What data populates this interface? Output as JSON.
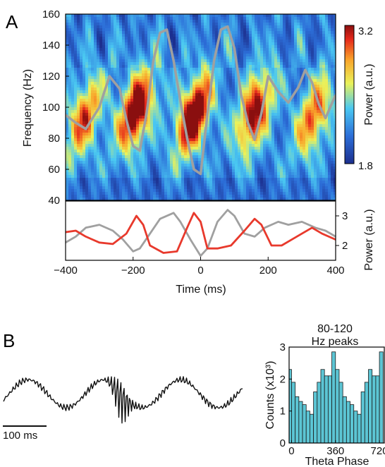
{
  "panels": {
    "a": "A",
    "b": "B"
  },
  "chart_data": [
    {
      "id": "spectrogram",
      "type": "heatmap",
      "xlabel": "",
      "ylabel": "Frequency (Hz)",
      "xlim": [
        -400,
        400
      ],
      "ylim": [
        40,
        160
      ],
      "yticks": [
        "40",
        "60",
        "80",
        "100",
        "120",
        "140",
        "160"
      ],
      "blobs": [
        {
          "t": -345,
          "f": 93,
          "amp": 0.55
        },
        {
          "t": -190,
          "f": 98,
          "amp": 0.95
        },
        {
          "t": -20,
          "f": 95,
          "amp": 1.0
        },
        {
          "t": 160,
          "f": 97,
          "amp": 0.8
        },
        {
          "t": 335,
          "f": 94,
          "amp": 0.55
        }
      ],
      "overlay_trace": {
        "color": "#a0a0a0",
        "t": [
          -400,
          -370,
          -340,
          -300,
          -270,
          -240,
          -220,
          -200,
          -180,
          -160,
          -140,
          -120,
          -100,
          -80,
          -60,
          -40,
          -20,
          0,
          20,
          40,
          60,
          80,
          100,
          120,
          140,
          160,
          180,
          200,
          230,
          260,
          290,
          310,
          330,
          350,
          370,
          400
        ],
        "f": [
          95,
          90,
          86,
          100,
          120,
          112,
          92,
          75,
          72,
          96,
          130,
          148,
          150,
          130,
          104,
          80,
          60,
          57,
          95,
          130,
          150,
          152,
          138,
          108,
          90,
          79,
          96,
          120,
          110,
          103,
          113,
          124,
          116,
          102,
          93,
          108
        ]
      },
      "colorbar": {
        "label": "Power (a.u.)",
        "max": "3.2",
        "min": "1.8"
      }
    },
    {
      "id": "power-traces",
      "type": "line",
      "xlabel": "Time (ms)",
      "ylabel": "Power (a.u.)",
      "xlim": [
        -400,
        400
      ],
      "ylim": [
        1.5,
        3.5
      ],
      "xticks": [
        "−400",
        "−200",
        "0",
        "200",
        "400"
      ],
      "yticks": [
        "2",
        "3"
      ],
      "series": [
        {
          "color": "#e8392c",
          "x": [
            -400,
            -370,
            -340,
            -300,
            -260,
            -220,
            -190,
            -170,
            -150,
            -110,
            -70,
            -40,
            -20,
            0,
            20,
            50,
            90,
            130,
            160,
            180,
            210,
            240,
            270,
            300,
            330,
            360,
            400
          ],
          "y": [
            2.45,
            2.5,
            2.3,
            2.1,
            2.05,
            2.4,
            3.0,
            2.7,
            2.0,
            1.75,
            1.8,
            2.6,
            3.1,
            2.8,
            1.9,
            1.9,
            2.0,
            2.5,
            2.9,
            2.7,
            2.0,
            2.0,
            2.2,
            2.4,
            2.6,
            2.4,
            2.2
          ]
        },
        {
          "color": "#a0a0a0",
          "x": [
            -400,
            -370,
            -340,
            -300,
            -260,
            -230,
            -200,
            -180,
            -150,
            -120,
            -80,
            -60,
            -30,
            0,
            20,
            50,
            80,
            100,
            130,
            160,
            190,
            230,
            260,
            300,
            340,
            370,
            400
          ],
          "y": [
            2.1,
            2.3,
            2.6,
            2.7,
            2.5,
            2.2,
            1.8,
            1.9,
            2.4,
            2.9,
            3.1,
            2.8,
            2.2,
            1.65,
            1.9,
            2.8,
            3.2,
            3.0,
            2.4,
            2.3,
            2.6,
            2.8,
            2.7,
            2.8,
            2.6,
            2.5,
            2.3
          ]
        }
      ]
    },
    {
      "id": "raw-trace",
      "type": "line",
      "scalebar": "100 ms"
    },
    {
      "id": "phase-histogram",
      "type": "bar",
      "title": "80-120 Hz peaks",
      "xlabel": "Theta Phase",
      "ylabel": "Counts (x10³)",
      "xlim": [
        -20,
        760
      ],
      "ylim": [
        0,
        3
      ],
      "xticks": [
        "0",
        "360",
        "720"
      ],
      "yticks": [
        "0",
        "1",
        "2",
        "3"
      ],
      "bar_color": "#5cc5d4",
      "bin_width": 30,
      "bin_centers": [
        -15,
        15,
        45,
        75,
        105,
        135,
        165,
        195,
        225,
        255,
        285,
        315,
        345,
        375,
        405,
        435,
        465,
        495,
        525,
        555,
        585,
        615,
        645,
        675,
        705,
        735
      ],
      "values": [
        2.3,
        1.9,
        1.45,
        1.3,
        1.2,
        1.0,
        0.9,
        1.6,
        1.9,
        2.3,
        2.1,
        2.1,
        2.85,
        2.3,
        1.9,
        1.45,
        1.3,
        1.2,
        1.0,
        0.9,
        1.6,
        1.9,
        2.3,
        2.1,
        2.1,
        2.85
      ]
    }
  ]
}
